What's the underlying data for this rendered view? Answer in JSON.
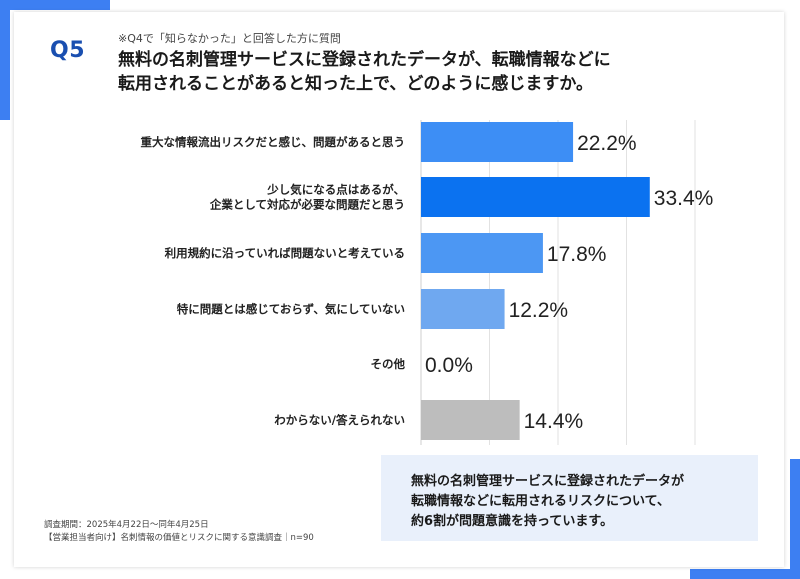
{
  "question": {
    "badge": "Q5",
    "pre": "※Q4で「知らなかった」と回答した方に質問",
    "title_line1": "無料の名刺管理サービスに登録されたデータが、転職情報などに",
    "title_line2": "転用されることがあると知った上で、どのように感じますか。"
  },
  "note": {
    "line1": "無料の名刺管理サービスに登録されたデータが",
    "line2": "転職情報などに転用されるリスクについて、",
    "line3": "約6割が問題意識を持っています。"
  },
  "footer": {
    "line1": "調査期間：2025年4月22日〜同年4月25日",
    "line2": "【営業担当者向け】名刺情報の価値とリスクに関する意識調査｜n=90"
  },
  "colors": {
    "accent": "#3d7ff2",
    "badge": "#1a4fb0",
    "note_bg": "#e9f0fb"
  },
  "chart_data": {
    "type": "bar",
    "orientation": "horizontal",
    "categories": [
      [
        "重大な情報流出リスクだと感じ、問題があると思う"
      ],
      [
        "少し気になる点はあるが、",
        "企業として対応が必要な問題だと思う"
      ],
      [
        "利用規約に沿っていれば問題ないと考えている"
      ],
      [
        "特に問題とは感じておらず、気にしていない"
      ],
      [
        "その他"
      ],
      [
        "わからない/答えられない"
      ]
    ],
    "values": [
      22.2,
      33.4,
      17.8,
      12.2,
      0.0,
      14.4
    ],
    "value_labels": [
      "22.2%",
      "33.4%",
      "17.8%",
      "12.2%",
      "0.0%",
      "14.4%"
    ],
    "bar_colors": [
      "#3d8ef5",
      "#0b72f0",
      "#4c97f3",
      "#6fa8f0",
      "#6fa8f0",
      "#bdbdbd"
    ],
    "xlim": [
      0,
      40
    ],
    "grid": true,
    "gridline_values": [
      0,
      10,
      20,
      30,
      40
    ]
  }
}
